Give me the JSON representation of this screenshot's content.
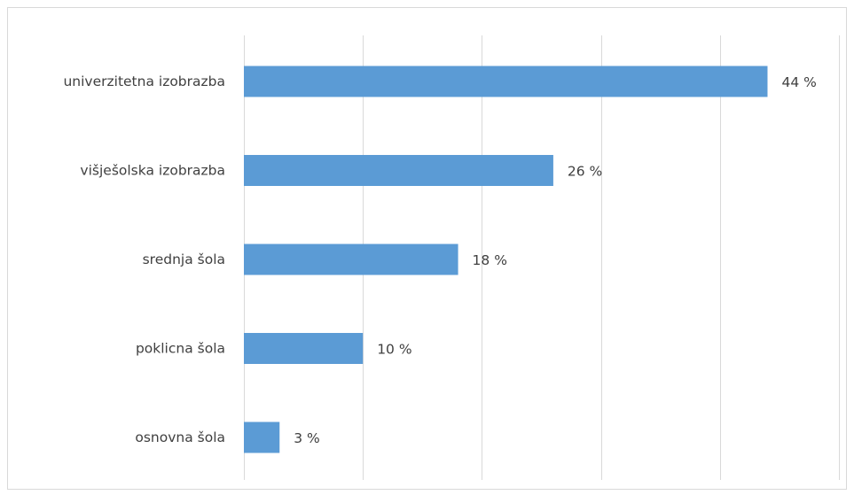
{
  "chart_data": {
    "type": "bar",
    "orientation": "horizontal",
    "categories": [
      "univerzitetna izobrazba",
      "višješolska izobrazba",
      "srednja šola",
      "poklicna šola",
      "osnovna šola"
    ],
    "values": [
      44,
      26,
      18,
      10,
      3
    ],
    "data_labels": [
      "44 %",
      "26 %",
      "18 %",
      "10 %",
      "3 %"
    ],
    "title": "",
    "xlabel": "",
    "ylabel": "",
    "xlim": [
      0,
      50
    ],
    "grid": true,
    "legend": "none",
    "bar_color": "#5b9bd5"
  }
}
